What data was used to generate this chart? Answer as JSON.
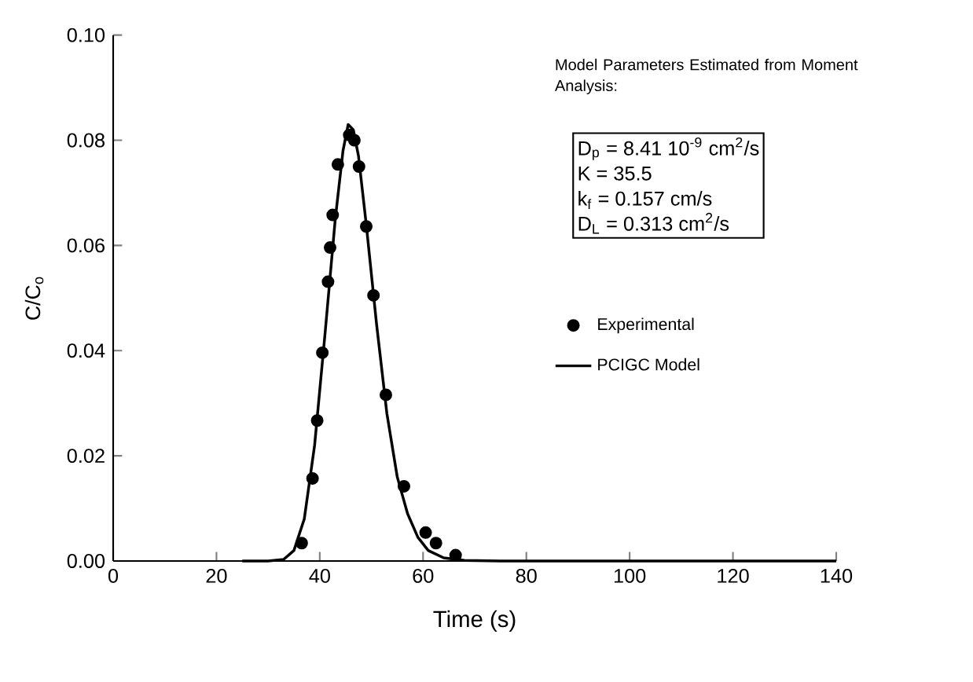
{
  "chart_data": {
    "type": "scatter",
    "xlabel": "Time (s)",
    "ylabel": "C/C$_{o}$",
    "xlim": [
      0,
      140
    ],
    "xticks": [
      0,
      20,
      40,
      60,
      80,
      100,
      120,
      140
    ],
    "ylim": [
      0,
      0.1
    ],
    "yticks": [
      {
        "value": 0,
        "label": "0.00"
      },
      {
        "value": 0.02,
        "label": "0.02"
      },
      {
        "value": 0.04,
        "label": "0.04"
      },
      {
        "value": 0.06,
        "label": "0.06"
      },
      {
        "value": 0.08,
        "label": "0.08"
      },
      {
        "value": 0.1,
        "label": "0.10"
      }
    ],
    "legend": "right",
    "grid": false,
    "series": [
      {
        "name": "Experimental",
        "type": "scatter",
        "marker": "circle",
        "color": "#000000",
        "x": [
          36.5,
          38.6,
          39.5,
          40.5,
          41.6,
          42.0,
          42.5,
          43.5,
          45.7,
          46.7,
          47.6,
          49.0,
          50.4,
          52.8,
          56.3,
          60.5,
          62.5,
          66.3
        ],
        "values": [
          0.0034,
          0.0157,
          0.0267,
          0.0396,
          0.0531,
          0.0596,
          0.0658,
          0.0754,
          0.081,
          0.08,
          0.075,
          0.0636,
          0.0505,
          0.0316,
          0.0142,
          0.0054,
          0.0034,
          0.0011
        ]
      },
      {
        "name": "PCIGC Model",
        "type": "line",
        "marker": "none",
        "line_style": "solid",
        "color": "#000000",
        "x": [
          25,
          30,
          33,
          35,
          37,
          39,
          41,
          43,
          44.5,
          45.5,
          46.5,
          47.5,
          49,
          51,
          53,
          55,
          57,
          59,
          61,
          64,
          68,
          75,
          140
        ],
        "values": [
          0,
          0,
          0.0003,
          0.002,
          0.008,
          0.022,
          0.043,
          0.065,
          0.078,
          0.083,
          0.082,
          0.077,
          0.064,
          0.045,
          0.028,
          0.016,
          0.009,
          0.0045,
          0.002,
          0.0006,
          0.0001,
          0,
          0
        ]
      }
    ],
    "annotations": [
      "Model Parameters Estimated from Moment Analysis:",
      "D$_{p}$ = 8.41 10$^{-9}$ cm$^{2}$/s",
      "K = 35.5",
      "k$_{f}$ = 0.157 cm/s",
      "D$_{L}$ = 0.313 cm$^{2}$/s"
    ]
  }
}
